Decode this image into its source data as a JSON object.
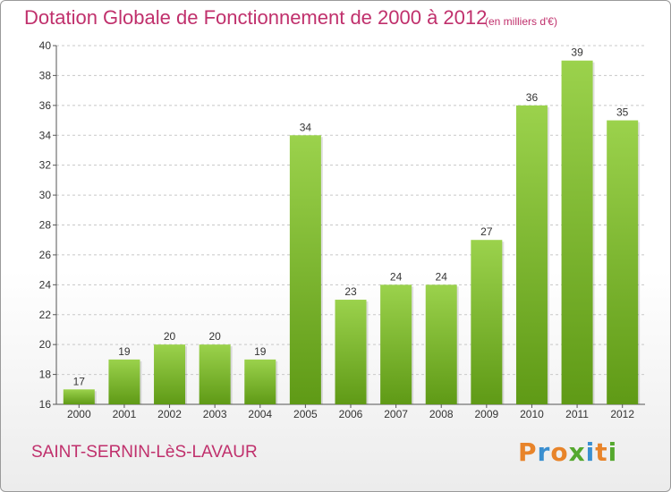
{
  "header": {
    "title": "Dotation Globale de Fonctionnement de 2000 à 2012",
    "unit": "(en milliers d'€)"
  },
  "footer": {
    "commune": "SAINT-SERNIN-LèS-LAVAUR",
    "logo_text": "Proxiti"
  },
  "colors": {
    "accent": "#c0306c",
    "bar_top": "#9bd24c",
    "bar_bottom": "#5f9a16"
  },
  "chart_data": {
    "type": "bar",
    "title": "Dotation Globale de Fonctionnement de 2000 à 2012",
    "subtitle": "(en milliers d'€)",
    "xlabel": "",
    "ylabel": "",
    "categories": [
      "2000",
      "2001",
      "2002",
      "2003",
      "2004",
      "2005",
      "2006",
      "2007",
      "2008",
      "2009",
      "2010",
      "2011",
      "2012"
    ],
    "values": [
      17,
      19,
      20,
      20,
      19,
      34,
      23,
      24,
      24,
      27,
      36,
      39,
      35
    ],
    "ylim": [
      16,
      40
    ],
    "yticks": [
      16,
      18,
      20,
      22,
      24,
      26,
      28,
      30,
      32,
      34,
      36,
      38,
      40
    ],
    "grid": "horizontal dashed",
    "legend": "none"
  }
}
